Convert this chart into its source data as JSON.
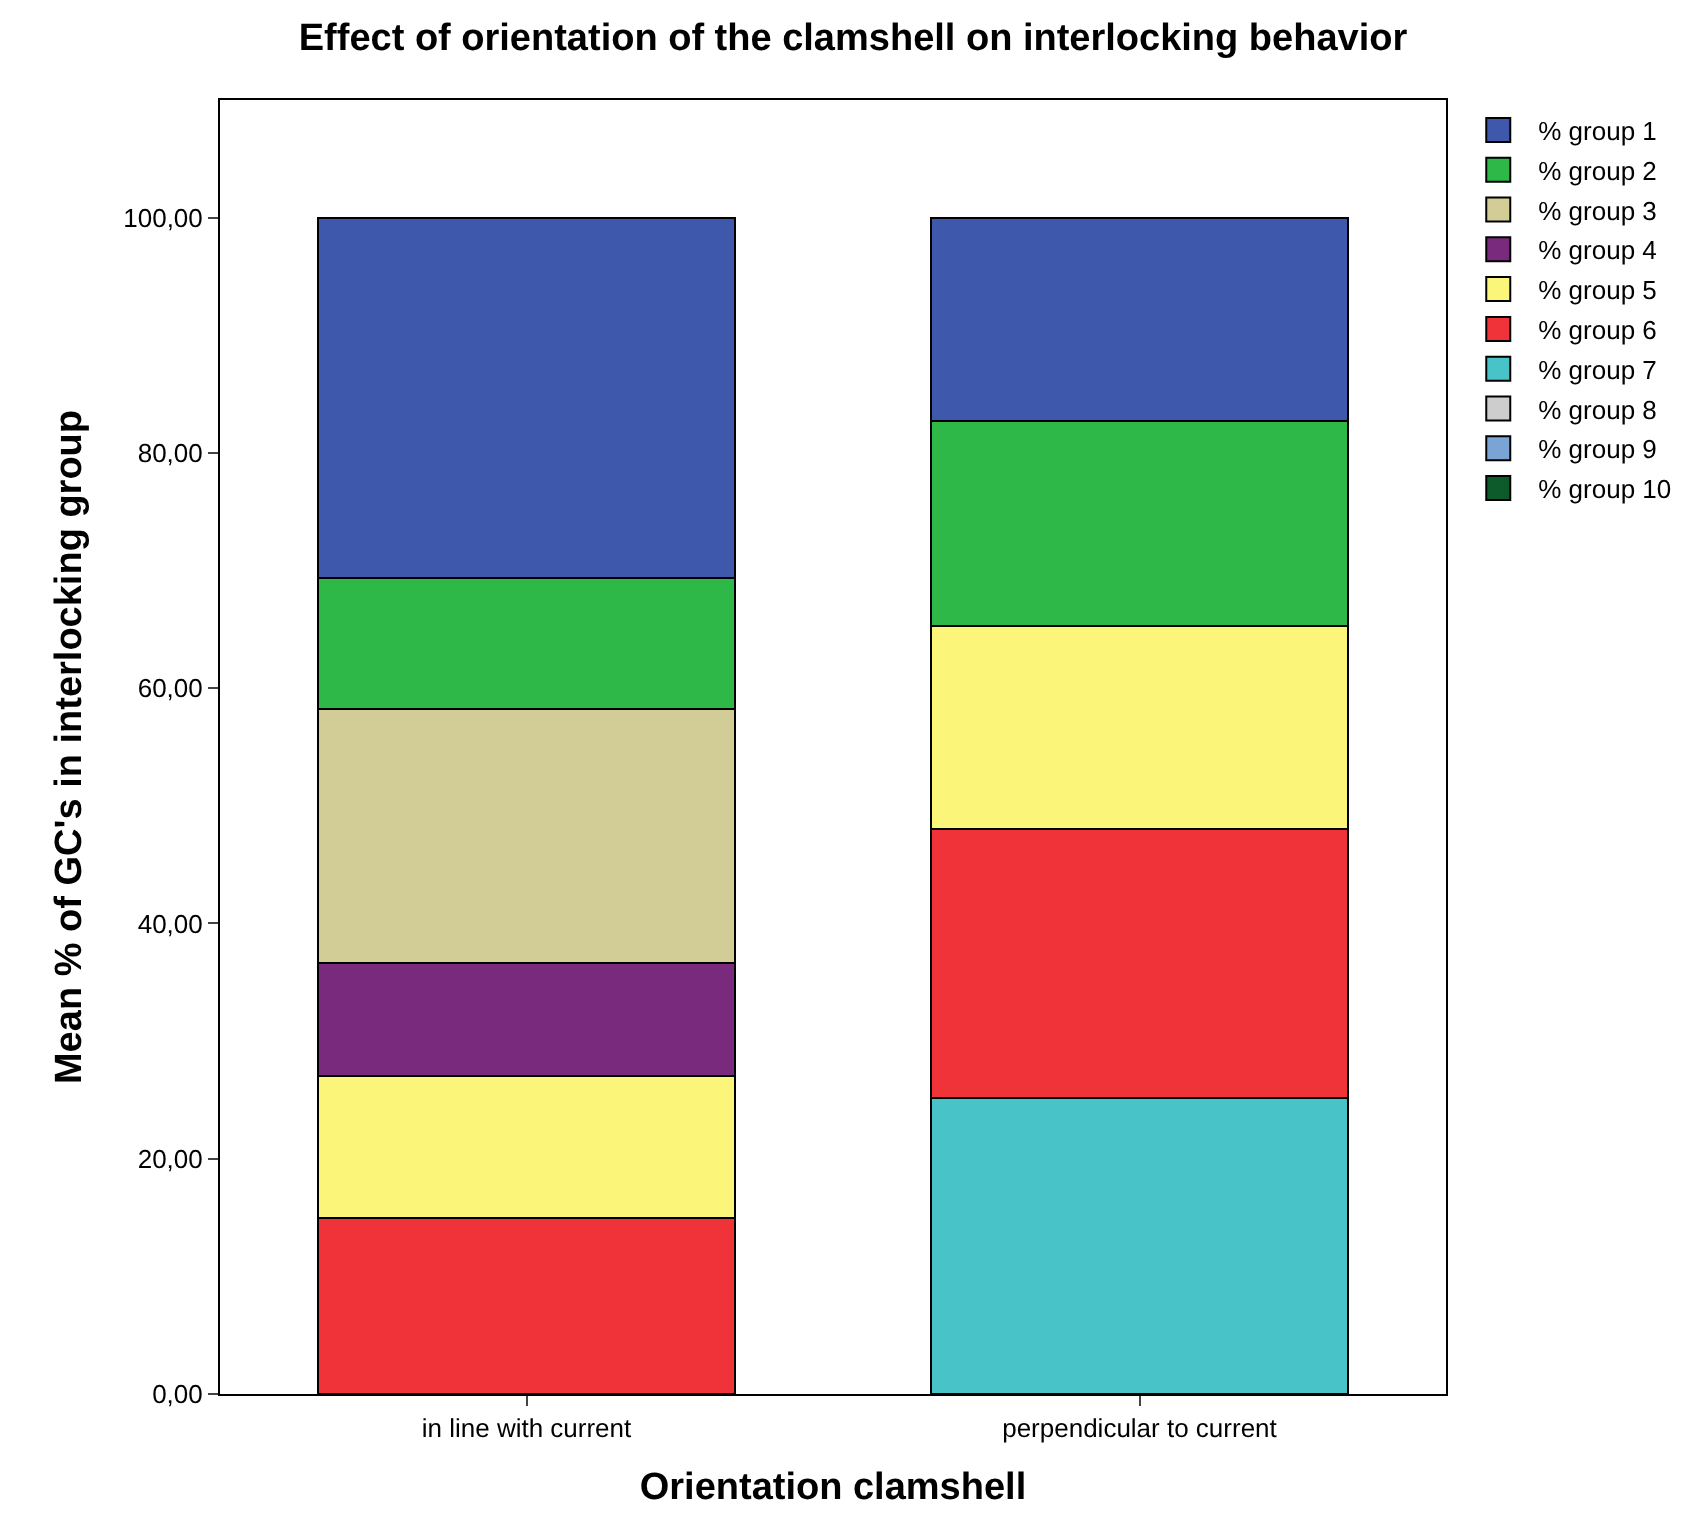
{
  "chart_data": {
    "type": "bar",
    "title": "Effect of orientation of the clamshell on interlocking behavior",
    "xlabel": "Orientation clamshell",
    "ylabel": "Mean % of GC's in interlocking group",
    "categories": [
      "in line with current",
      "perpendicular to current"
    ],
    "stacked": true,
    "legend": "top right",
    "ylim": [
      0,
      110
    ],
    "yticks": [
      {
        "value": 0,
        "label": "0,00"
      },
      {
        "value": 20,
        "label": "20,00"
      },
      {
        "value": 40,
        "label": "40,00"
      },
      {
        "value": 60,
        "label": "60,00"
      },
      {
        "value": 80,
        "label": "80,00"
      },
      {
        "value": 100,
        "label": "100,00"
      }
    ],
    "series": [
      {
        "name": "% group 10",
        "color": "#0d5a2a",
        "values": [
          null,
          null
        ]
      },
      {
        "name": "% group 9",
        "color": "#7aa3d6",
        "values": [
          null,
          null
        ]
      },
      {
        "name": "% group 8",
        "color": "#cdcdcd",
        "values": [
          null,
          null
        ]
      },
      {
        "name": "% group 7",
        "color": "#48c3c8",
        "values": [
          null,
          25.2
        ]
      },
      {
        "name": "% group 6",
        "color": "#ef3338",
        "values": [
          15.0,
          22.8
        ]
      },
      {
        "name": "% group 5",
        "color": "#fbf57a",
        "values": [
          12.0,
          17.3
        ]
      },
      {
        "name": "% group 4",
        "color": "#7a2a7c",
        "values": [
          9.6,
          null
        ]
      },
      {
        "name": "% group 3",
        "color": "#d2cc96",
        "values": [
          21.6,
          null
        ]
      },
      {
        "name": "% group 2",
        "color": "#2eb848",
        "values": [
          11.2,
          17.4
        ]
      },
      {
        "name": "% group 1",
        "color": "#3e58ac",
        "values": [
          30.6,
          17.3
        ]
      }
    ]
  }
}
